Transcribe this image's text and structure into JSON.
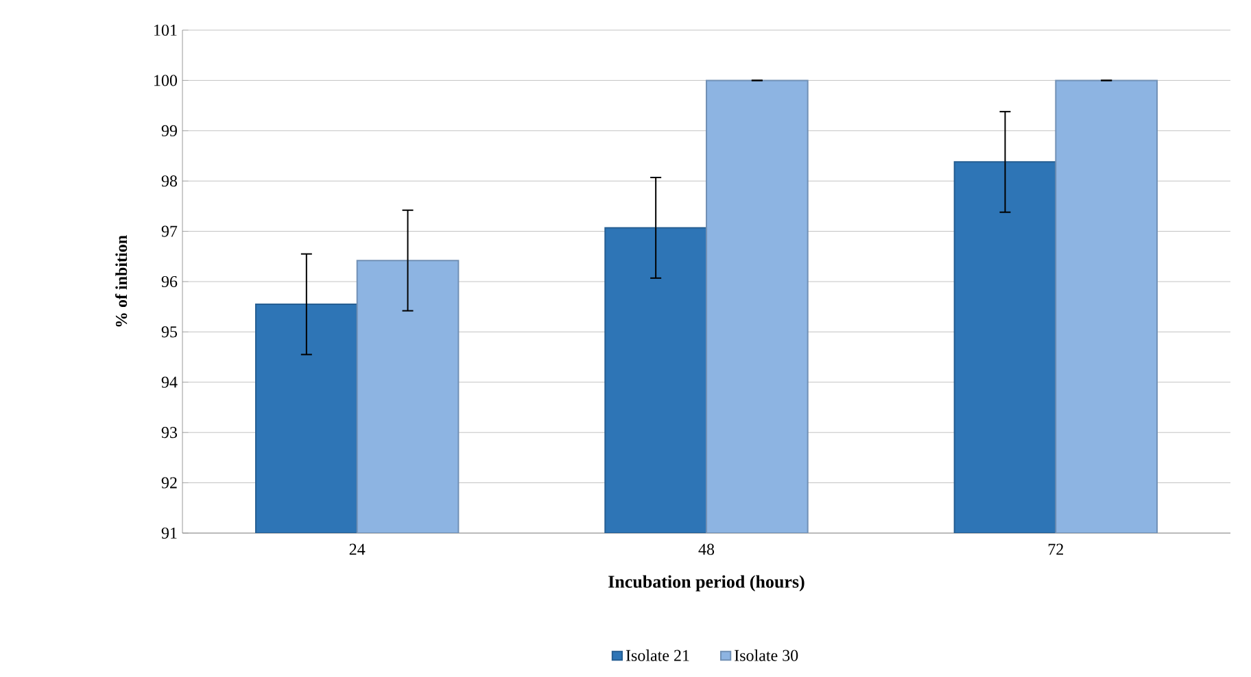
{
  "chart_data": {
    "type": "bar",
    "xlabel": "Incubation period (hours)",
    "ylabel": "% of inbition",
    "categories": [
      "24",
      "48",
      "72"
    ],
    "series": [
      {
        "name": "Isolate 21",
        "color": "#2e75b6",
        "values": [
          95.55,
          97.07,
          98.38
        ],
        "errors": [
          1,
          1,
          1
        ]
      },
      {
        "name": "Isolate 30",
        "color": "#8db4e2",
        "values": [
          96.42,
          100,
          100
        ],
        "errors": [
          1,
          0,
          0
        ]
      }
    ],
    "ylim": [
      91,
      101
    ],
    "yticks": [
      91,
      92,
      93,
      94,
      95,
      96,
      97,
      98,
      99,
      100,
      101
    ],
    "grid": "y",
    "legend": "bottom"
  }
}
